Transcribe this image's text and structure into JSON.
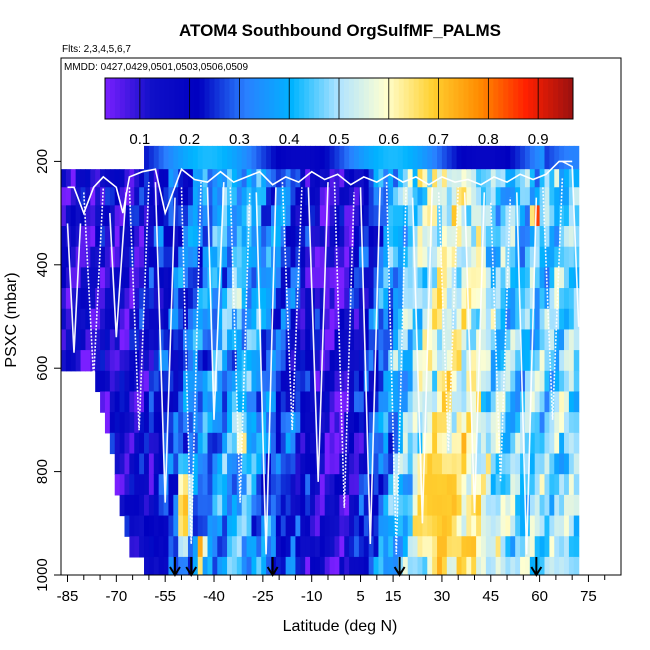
{
  "chart_data": {
    "type": "heatmap",
    "title": "ATOM4 Southbound OrgSulfMF_PALMS",
    "flights_note": "Flts: 2,3,4,5,6,7",
    "dates_note": "MMDD: 0427,0429,0501,0503,0506,0509",
    "xlabel": "Latitude (deg N)",
    "ylabel": "PSXC (mbar)",
    "xlim": [
      -87,
      85
    ],
    "ylim": [
      1000,
      0
    ],
    "x_ticks": [
      -85,
      -70,
      -55,
      -40,
      -25,
      -10,
      5,
      15,
      30,
      45,
      60,
      75
    ],
    "x_tick_labels": [
      "-85",
      "-70",
      "-55",
      "-40",
      "-25",
      "-10",
      "5",
      "15",
      "30",
      "45",
      "60",
      "75"
    ],
    "y_ticks": [
      200,
      400,
      600,
      800,
      1000
    ],
    "y_tick_labels": [
      "200",
      "400",
      "600",
      "800",
      "1000"
    ],
    "colorbar": {
      "range": [
        0.03,
        0.97
      ],
      "ticks": [
        0.1,
        0.2,
        0.3,
        0.4,
        0.5,
        0.6,
        0.7,
        0.8,
        0.9
      ],
      "tick_labels": [
        "0.1",
        "0.2",
        "0.3",
        "0.4",
        "0.5",
        "0.6",
        "0.7",
        "0.8",
        "0.9"
      ],
      "colors": [
        "#7a1fff",
        "#1010c8",
        "#0000c0",
        "#2a7fff",
        "#00b4ff",
        "#b0e4ff",
        "#ffffd0",
        "#ffd030",
        "#ff8c00",
        "#ff2000",
        "#9a1010"
      ]
    },
    "lat_min": -87,
    "lat_max": 72,
    "lat_step": 1.5,
    "pressure_levels": [
      170,
      215,
      250,
      285,
      325,
      365,
      405,
      445,
      485,
      525,
      565,
      605,
      645,
      685,
      725,
      765,
      805,
      845,
      885,
      925,
      965,
      1005
    ],
    "surface_pressure_start": [
      610,
      610,
      610,
      610,
      610,
      610,
      640,
      660,
      700,
      750,
      800,
      850,
      900,
      950,
      990,
      990,
      990
    ],
    "top_pressure_start": [
      1005,
      1005,
      270,
      230,
      230,
      230,
      230,
      230,
      230,
      230,
      230,
      230,
      230,
      230,
      230,
      230,
      230,
      230,
      230,
      230
    ],
    "base_field": [
      [
        -87,
        0.12
      ],
      [
        -75,
        0.13
      ],
      [
        -62,
        0.16
      ],
      [
        -55,
        0.25
      ],
      [
        -48,
        0.32
      ],
      [
        -40,
        0.38
      ],
      [
        -30,
        0.4
      ],
      [
        -20,
        0.3
      ],
      [
        -12,
        0.18
      ],
      [
        -5,
        0.1
      ],
      [
        0,
        0.12
      ],
      [
        8,
        0.28
      ],
      [
        15,
        0.42
      ],
      [
        22,
        0.48
      ],
      [
        30,
        0.56
      ],
      [
        38,
        0.55
      ],
      [
        45,
        0.44
      ],
      [
        55,
        0.4
      ],
      [
        62,
        0.42
      ],
      [
        72,
        0.45
      ]
    ],
    "hotspots": [
      {
        "lat": -50,
        "p": 870,
        "w": 3,
        "h": 120,
        "v": 0.72
      },
      {
        "lat": -45,
        "p": 960,
        "w": 2,
        "h": 40,
        "v": 0.8
      },
      {
        "lat": -33,
        "p": 480,
        "w": 2,
        "h": 30,
        "v": 0.62
      },
      {
        "lat": -32,
        "p": 740,
        "w": 2,
        "h": 50,
        "v": 0.66
      },
      {
        "lat": -8,
        "p": 420,
        "w": 6,
        "h": 60,
        "v": 0.04
      },
      {
        "lat": 28,
        "p": 860,
        "w": 9,
        "h": 140,
        "v": 0.7
      },
      {
        "lat": 40,
        "p": 440,
        "w": 5,
        "h": 60,
        "v": 0.62
      },
      {
        "lat": 58,
        "p": 300,
        "w": 1.5,
        "h": 25,
        "v": 0.92
      },
      {
        "lat": 23,
        "p": 240,
        "w": 2,
        "h": 25,
        "v": 0.7
      },
      {
        "lat": -80,
        "p": 340,
        "w": 2,
        "h": 40,
        "v": 0.06
      }
    ],
    "arrows_lat": [
      -52,
      -47,
      -22,
      17,
      59
    ],
    "profile_paths": [
      [
        [
          -85,
          320
        ],
        [
          -83,
          570
        ],
        [
          -81,
          320
        ]
      ],
      [
        [
          -80,
          260
        ],
        [
          -77,
          620
        ],
        [
          -74,
          250
        ]
      ],
      [
        [
          -72,
          300
        ],
        [
          -70,
          540
        ],
        [
          -67,
          260
        ]
      ],
      [
        [
          -66,
          250
        ],
        [
          -63,
          720
        ],
        [
          -60,
          240
        ]
      ],
      [
        [
          -58,
          240
        ],
        [
          -55,
          860
        ],
        [
          -52,
          270
        ]
      ],
      [
        [
          -50,
          250
        ],
        [
          -47,
          940
        ],
        [
          -44,
          240
        ]
      ],
      [
        [
          -42,
          250
        ],
        [
          -40,
          700
        ],
        [
          -37,
          240
        ]
      ],
      [
        [
          -35,
          250
        ],
        [
          -32,
          860
        ],
        [
          -29,
          260
        ]
      ],
      [
        [
          -27,
          260
        ],
        [
          -24,
          960
        ],
        [
          -21,
          250
        ]
      ],
      [
        [
          -19,
          240
        ],
        [
          -16,
          720
        ],
        [
          -13,
          250
        ]
      ],
      [
        [
          -11,
          250
        ],
        [
          -8,
          820
        ],
        [
          -5,
          240
        ]
      ],
      [
        [
          -3,
          240
        ],
        [
          0,
          870
        ],
        [
          3,
          260
        ]
      ],
      [
        [
          5,
          250
        ],
        [
          8,
          940
        ],
        [
          11,
          250
        ]
      ],
      [
        [
          13,
          240
        ],
        [
          16,
          960
        ],
        [
          19,
          250
        ]
      ],
      [
        [
          21,
          270
        ],
        [
          24,
          900
        ],
        [
          27,
          250
        ]
      ],
      [
        [
          29,
          260
        ],
        [
          32,
          760
        ],
        [
          35,
          250
        ]
      ],
      [
        [
          37,
          260
        ],
        [
          40,
          880
        ],
        [
          43,
          260
        ]
      ],
      [
        [
          45,
          280
        ],
        [
          48,
          820
        ],
        [
          51,
          270
        ]
      ],
      [
        [
          53,
          260
        ],
        [
          56,
          960
        ],
        [
          59,
          270
        ]
      ],
      [
        [
          61,
          250
        ],
        [
          64,
          700
        ],
        [
          67,
          230
        ]
      ],
      [
        [
          67,
          200
        ],
        [
          70,
          210
        ],
        [
          72,
          520
        ]
      ]
    ],
    "top_line": [
      [
        -85,
        250
      ],
      [
        -83,
        250
      ],
      [
        -80,
        300
      ],
      [
        -77,
        250
      ],
      [
        -74,
        230
      ],
      [
        -70,
        250
      ],
      [
        -68,
        300
      ],
      [
        -66,
        230
      ],
      [
        -62,
        220
      ],
      [
        -58,
        215
      ],
      [
        -55,
        300
      ],
      [
        -50,
        215
      ],
      [
        -46,
        235
      ],
      [
        -42,
        240
      ],
      [
        -38,
        220
      ],
      [
        -34,
        240
      ],
      [
        -30,
        230
      ],
      [
        -26,
        220
      ],
      [
        -22,
        245
      ],
      [
        -18,
        230
      ],
      [
        -14,
        240
      ],
      [
        -10,
        220
      ],
      [
        -6,
        235
      ],
      [
        -2,
        225
      ],
      [
        2,
        245
      ],
      [
        6,
        230
      ],
      [
        10,
        240
      ],
      [
        14,
        225
      ],
      [
        18,
        240
      ],
      [
        22,
        230
      ],
      [
        26,
        245
      ],
      [
        30,
        230
      ],
      [
        34,
        240
      ],
      [
        38,
        235
      ],
      [
        42,
        245
      ],
      [
        46,
        230
      ],
      [
        50,
        240
      ],
      [
        54,
        225
      ],
      [
        58,
        235
      ],
      [
        62,
        225
      ],
      [
        66,
        200
      ],
      [
        70,
        200
      ]
    ]
  }
}
